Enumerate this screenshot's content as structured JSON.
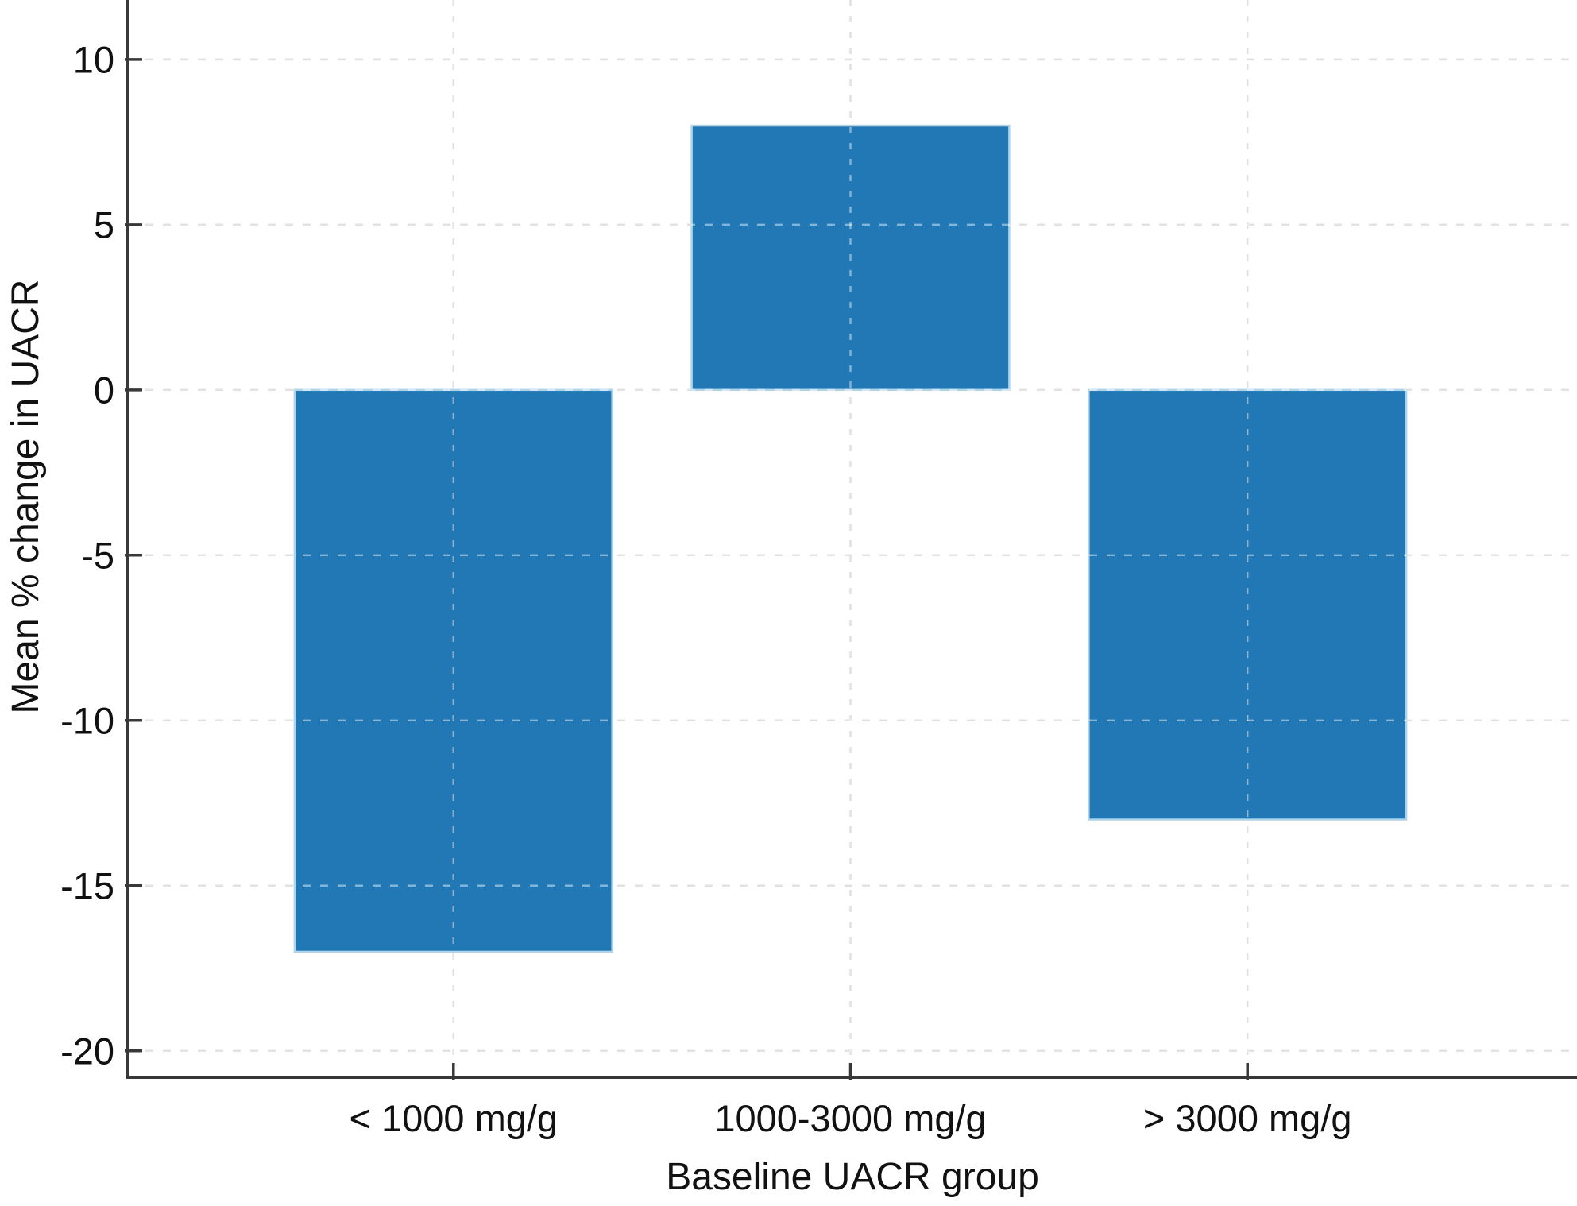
{
  "chart_data": {
    "type": "bar",
    "title": "",
    "xlabel": "Baseline UACR group",
    "ylabel": "Mean % change in UACR",
    "categories": [
      "< 1000 mg/g",
      "1000-3000 mg/g",
      "> 3000 mg/g"
    ],
    "values": [
      -17,
      8,
      -13
    ],
    "series": [
      {
        "name": "Mean % change in UACR",
        "values": [
          -17,
          8,
          -13
        ]
      }
    ],
    "yticks": [
      10,
      5,
      0,
      -5,
      -10,
      -15,
      -20
    ],
    "ytick_labels": [
      "10",
      "5",
      "0",
      "-5",
      "-10",
      "-15",
      "-20"
    ],
    "ylim": [
      -20.8,
      11.8
    ],
    "xlim": [
      -0.82,
      2.83
    ],
    "bar_width": 0.8,
    "grid": "dashed gridlines on both axes, drawn light over bars",
    "legend": "none",
    "colors": {
      "bar_fill": "#2278b5",
      "bar_edge": "#aed4ea",
      "grid": "#cbcbcb",
      "grid_over_bar": "rgba(255,255,255,0.45)",
      "axis": "#383838",
      "text": "#111111",
      "background": "#ffffff"
    }
  }
}
